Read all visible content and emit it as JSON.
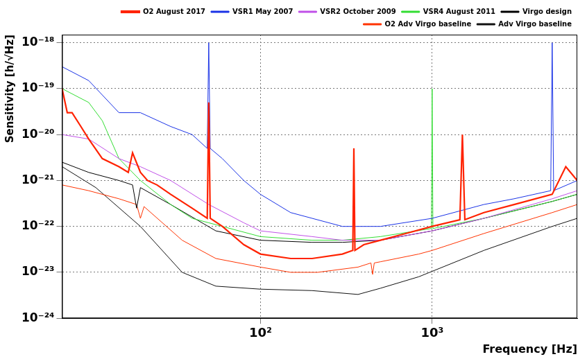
{
  "chart_data": {
    "type": "line",
    "x_label": "Frequency [Hz]",
    "y_label": "Sensitivity [h/√Hz]",
    "log": true,
    "grid": true,
    "legend": "top",
    "xlim": [
      7,
      7000
    ],
    "xticks": [
      {
        "value": 100,
        "label": "10²"
      },
      {
        "value": 1000,
        "label": "10³"
      }
    ],
    "ylim": [
      1e-24,
      1.5e-18
    ],
    "yticks": [
      {
        "value": 1e-24,
        "label": "10⁻²⁴"
      },
      {
        "value": 1e-23,
        "label": "10⁻²³"
      },
      {
        "value": 1e-22,
        "label": "10⁻²²"
      },
      {
        "value": 1e-21,
        "label": "10⁻²¹"
      },
      {
        "value": 1e-20,
        "label": "10⁻²⁰"
      },
      {
        "value": 1e-19,
        "label": "10⁻¹⁹"
      },
      {
        "value": 1e-18,
        "label": "10⁻¹⁸"
      }
    ],
    "series": [
      {
        "name": "VSR1 May 2007",
        "color": "#1a33e6",
        "x": [
          7,
          10,
          15,
          20,
          30,
          40,
          49,
          50,
          51,
          60,
          80,
          100,
          150,
          200,
          300,
          500,
          1000,
          2000,
          3000,
          4900,
          5000,
          5100,
          7000
        ],
        "values": [
          3e-19,
          1.5e-19,
          3e-20,
          3e-20,
          1.5e-20,
          1e-20,
          5e-21,
          1e-18,
          5e-21,
          3e-21,
          1e-21,
          5e-22,
          2e-22,
          1.5e-22,
          1e-22,
          1e-22,
          1.5e-22,
          3e-22,
          4e-22,
          6e-22,
          1e-18,
          6e-22,
          1e-21
        ]
      },
      {
        "name": "VSR2 October 2009",
        "color": "#c050e8",
        "x": [
          7,
          10,
          15,
          20,
          30,
          50,
          80,
          100,
          200,
          300,
          500,
          1000,
          2000,
          5000,
          7000
        ],
        "values": [
          1e-20,
          8e-21,
          3e-21,
          2e-21,
          1e-21,
          3e-22,
          1.2e-22,
          8e-23,
          6e-23,
          5e-23,
          5e-23,
          8e-23,
          1.5e-22,
          4e-22,
          6e-22
        ]
      },
      {
        "name": "VSR4 August 2011",
        "color": "#33dd33",
        "x": [
          7,
          10,
          12,
          15,
          20,
          30,
          40,
          50,
          100,
          200,
          300,
          500,
          990,
          1000,
          1010,
          2000,
          5000,
          7000
        ],
        "values": [
          1e-19,
          5e-20,
          2e-20,
          3e-21,
          1e-21,
          3e-22,
          1.5e-22,
          1.2e-22,
          6e-23,
          5e-23,
          5e-23,
          6e-23,
          9e-23,
          1e-19,
          9e-23,
          1.5e-22,
          3.5e-22,
          5e-22
        ]
      },
      {
        "name": "O2 August 2017",
        "color": "#ff2200",
        "x": [
          7,
          7.5,
          8,
          9,
          10,
          12,
          15,
          17,
          18,
          20,
          22,
          25,
          30,
          40,
          49,
          50,
          51,
          60,
          80,
          100,
          150,
          200,
          300,
          345,
          350,
          355,
          400,
          500,
          700,
          1000,
          1450,
          1500,
          1550,
          2000,
          3000,
          5000,
          6000,
          7000
        ],
        "values": [
          1e-19,
          3e-20,
          3e-20,
          1.5e-20,
          8e-21,
          3e-21,
          2e-21,
          1.5e-21,
          4e-21,
          1.5e-21,
          1e-21,
          8e-22,
          5e-22,
          2.5e-22,
          1.5e-22,
          5e-20,
          1.5e-22,
          1e-22,
          4e-23,
          2.5e-23,
          2e-23,
          2e-23,
          2.5e-23,
          3e-23,
          5e-21,
          3e-23,
          4e-23,
          5e-23,
          7e-23,
          1e-22,
          1.4e-22,
          1e-20,
          1.4e-22,
          2e-22,
          3e-22,
          5e-22,
          2e-21,
          1e-21
        ]
      },
      {
        "name": "Virgo design",
        "color": "#000000",
        "x": [
          7,
          10,
          15,
          18,
          19,
          20,
          30,
          55,
          100,
          200,
          300,
          500,
          1000,
          2000,
          5000,
          7000
        ],
        "values": [
          2.5e-21,
          1.5e-21,
          1e-21,
          8e-22,
          2.5e-22,
          7e-22,
          3e-22,
          8e-23,
          5e-23,
          4.5e-23,
          4.5e-23,
          5e-23,
          8e-23,
          1.5e-22,
          3.5e-22,
          5e-22
        ]
      },
      {
        "name": "O2 Adv Virgo baseline",
        "color": "#ff3300",
        "x": [
          7,
          10,
          15,
          19,
          20,
          21,
          35,
          55,
          100,
          150,
          215,
          370,
          440,
          450,
          460,
          500,
          835,
          1000,
          2000,
          5000,
          7000
        ],
        "values": [
          8e-22,
          6e-22,
          4e-22,
          3e-22,
          1.5e-22,
          2.7e-22,
          5e-23,
          2e-23,
          1.3e-23,
          1e-23,
          1e-23,
          1.3e-23,
          1.6e-23,
          9e-24,
          1.6e-23,
          1.7e-23,
          2.5e-23,
          3e-23,
          7e-23,
          2e-22,
          3e-22
        ]
      },
      {
        "name": "Adv Virgo baseline",
        "color": "#111111",
        "x": [
          7,
          11,
          20,
          35,
          55,
          100,
          200,
          370,
          500,
          835,
          2000,
          5000,
          7000
        ],
        "values": [
          2e-21,
          7e-22,
          1e-22,
          1e-23,
          5e-24,
          4.3e-24,
          4e-24,
          3.3e-24,
          4.5e-24,
          8e-24,
          3e-23,
          1e-22,
          1.5e-22
        ]
      }
    ]
  }
}
